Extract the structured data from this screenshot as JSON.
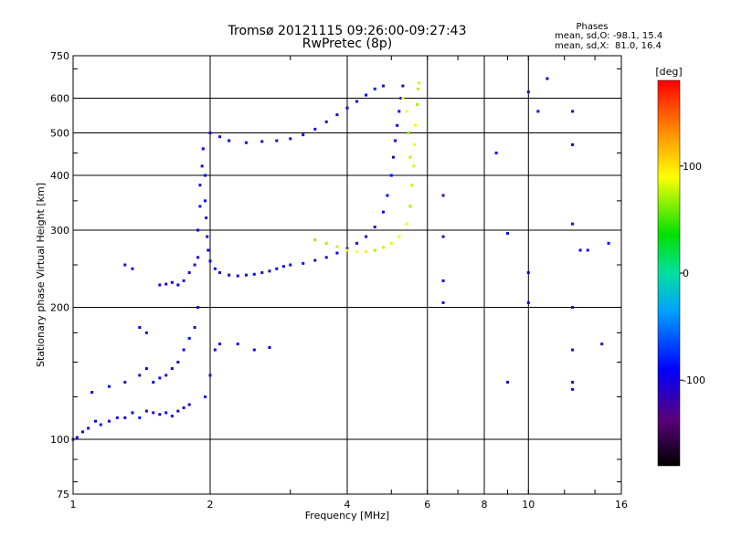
{
  "title": "Tromsø 20121115 09:26:00-09:27:43",
  "subtitle": "RwPretec (8p)",
  "stats": {
    "heading": "Phases",
    "line1": "mean, sd,O: -98.1, 15.4",
    "line2": "mean, sd,X:  81.0, 16.4"
  },
  "chart_data": {
    "type": "scatter",
    "title": "Tromsø 20121115 09:26:00-09:27:43",
    "subtitle": "RwPretec (8p)",
    "xlabel": "Frequency [MHz]",
    "ylabel": "Stationary phase Virtual Height [km]",
    "x_scale": "log",
    "y_scale": "log",
    "xlim": [
      1,
      16
    ],
    "ylim": [
      75,
      750
    ],
    "x_ticks": [
      1,
      2,
      4,
      6,
      8,
      10,
      16
    ],
    "x_tick_labels": [
      "1",
      "2",
      "4",
      "6",
      "8",
      "10",
      "16"
    ],
    "y_ticks": [
      75,
      100,
      200,
      300,
      400,
      500,
      600,
      750
    ],
    "y_tick_labels": [
      "75",
      "100",
      "200",
      "300",
      "400",
      "500",
      "600",
      "750"
    ],
    "grid": true,
    "colorbar": {
      "label": "[deg]",
      "range": [
        -180,
        180
      ],
      "ticks": [
        -100,
        0,
        100
      ],
      "tick_labels": [
        "-100",
        "0",
        "100"
      ],
      "colormap": "rainbow (black-purple-blue-cyan-green-yellow-orange-red)"
    },
    "series": [
      {
        "trace": "O-mode",
        "color_deg": -98,
        "points": [
          [
            1.0,
            100
          ],
          [
            1.02,
            101
          ],
          [
            1.05,
            104
          ],
          [
            1.08,
            106
          ],
          [
            1.12,
            110
          ],
          [
            1.15,
            108
          ],
          [
            1.2,
            110
          ],
          [
            1.25,
            112
          ],
          [
            1.3,
            112
          ],
          [
            1.35,
            115
          ],
          [
            1.4,
            112
          ],
          [
            1.45,
            116
          ],
          [
            1.5,
            115
          ],
          [
            1.55,
            114
          ],
          [
            1.6,
            115
          ],
          [
            1.65,
            113
          ],
          [
            1.7,
            116
          ],
          [
            1.75,
            118
          ],
          [
            1.8,
            120
          ],
          [
            1.1,
            128
          ],
          [
            1.2,
            132
          ],
          [
            1.3,
            135
          ],
          [
            1.4,
            140
          ],
          [
            1.45,
            145
          ],
          [
            1.5,
            135
          ],
          [
            1.55,
            138
          ],
          [
            1.6,
            140
          ],
          [
            1.65,
            145
          ],
          [
            1.7,
            150
          ],
          [
            1.75,
            160
          ],
          [
            1.8,
            170
          ],
          [
            1.85,
            180
          ],
          [
            1.88,
            200
          ],
          [
            1.3,
            250
          ],
          [
            1.35,
            245
          ],
          [
            1.4,
            180
          ],
          [
            1.45,
            175
          ],
          [
            1.55,
            225
          ],
          [
            1.6,
            226
          ],
          [
            1.65,
            228
          ],
          [
            1.7,
            225
          ],
          [
            1.75,
            230
          ],
          [
            1.8,
            240
          ],
          [
            1.85,
            250
          ],
          [
            1.88,
            260
          ],
          [
            1.88,
            300
          ],
          [
            1.9,
            340
          ],
          [
            1.9,
            380
          ],
          [
            1.92,
            420
          ],
          [
            1.93,
            460
          ],
          [
            1.95,
            400
          ],
          [
            1.95,
            350
          ],
          [
            1.96,
            320
          ],
          [
            1.97,
            290
          ],
          [
            1.98,
            270
          ],
          [
            2.0,
            255
          ],
          [
            2.05,
            245
          ],
          [
            2.1,
            240
          ],
          [
            2.2,
            237
          ],
          [
            2.3,
            236
          ],
          [
            2.4,
            237
          ],
          [
            2.5,
            238
          ],
          [
            2.6,
            240
          ],
          [
            2.7,
            242
          ],
          [
            2.8,
            245
          ],
          [
            2.9,
            248
          ],
          [
            3.0,
            250
          ],
          [
            3.2,
            252
          ],
          [
            3.4,
            256
          ],
          [
            3.6,
            260
          ],
          [
            3.8,
            266
          ],
          [
            4.0,
            272
          ],
          [
            4.2,
            280
          ],
          [
            4.4,
            290
          ],
          [
            4.6,
            305
          ],
          [
            4.8,
            330
          ],
          [
            4.9,
            360
          ],
          [
            5.0,
            400
          ],
          [
            5.05,
            440
          ],
          [
            5.1,
            480
          ],
          [
            5.15,
            520
          ],
          [
            5.2,
            560
          ],
          [
            5.25,
            600
          ],
          [
            5.3,
            640
          ],
          [
            2.0,
            500
          ],
          [
            2.1,
            490
          ],
          [
            2.2,
            480
          ],
          [
            2.4,
            475
          ],
          [
            2.6,
            478
          ],
          [
            2.8,
            480
          ],
          [
            3.0,
            485
          ],
          [
            3.2,
            495
          ],
          [
            3.4,
            510
          ],
          [
            3.6,
            530
          ],
          [
            3.8,
            550
          ],
          [
            4.0,
            570
          ],
          [
            4.2,
            590
          ],
          [
            4.4,
            610
          ],
          [
            4.6,
            630
          ],
          [
            4.8,
            640
          ],
          [
            2.3,
            165
          ],
          [
            2.5,
            160
          ],
          [
            2.7,
            162
          ],
          [
            1.95,
            125
          ],
          [
            2.0,
            140
          ],
          [
            2.05,
            160
          ],
          [
            2.1,
            165
          ]
        ]
      },
      {
        "trace": "X-mode",
        "color_deg": 81,
        "points": [
          [
            3.4,
            285
          ],
          [
            3.6,
            280
          ],
          [
            3.8,
            275
          ],
          [
            4.0,
            270
          ],
          [
            4.2,
            268
          ],
          [
            4.4,
            268
          ],
          [
            4.6,
            270
          ],
          [
            4.8,
            274
          ],
          [
            5.0,
            280
          ],
          [
            5.2,
            290
          ],
          [
            5.4,
            310
          ],
          [
            5.5,
            340
          ],
          [
            5.55,
            380
          ],
          [
            5.6,
            420
          ],
          [
            5.62,
            470
          ],
          [
            5.65,
            520
          ],
          [
            5.7,
            580
          ],
          [
            5.72,
            630
          ],
          [
            5.75,
            650
          ],
          [
            5.3,
            600
          ],
          [
            5.4,
            560
          ],
          [
            5.45,
            500
          ],
          [
            5.5,
            440
          ]
        ]
      },
      {
        "trace": "scattered",
        "color_deg": -100,
        "points": [
          [
            6.5,
            360
          ],
          [
            6.5,
            290
          ],
          [
            6.5,
            230
          ],
          [
            6.5,
            205
          ],
          [
            8.5,
            450
          ],
          [
            9.0,
            295
          ],
          [
            9.0,
            135
          ],
          [
            10.0,
            240
          ],
          [
            10.0,
            205
          ],
          [
            12.5,
            470
          ],
          [
            12.5,
            310
          ],
          [
            12.5,
            200
          ],
          [
            12.5,
            160
          ],
          [
            12.5,
            135
          ],
          [
            12.5,
            130
          ],
          [
            15.0,
            280
          ],
          [
            14.5,
            165
          ],
          [
            13.5,
            270
          ],
          [
            13.0,
            270
          ],
          [
            11.0,
            665
          ],
          [
            10.5,
            560
          ],
          [
            10.0,
            620
          ],
          [
            12.5,
            560
          ]
        ]
      }
    ]
  }
}
